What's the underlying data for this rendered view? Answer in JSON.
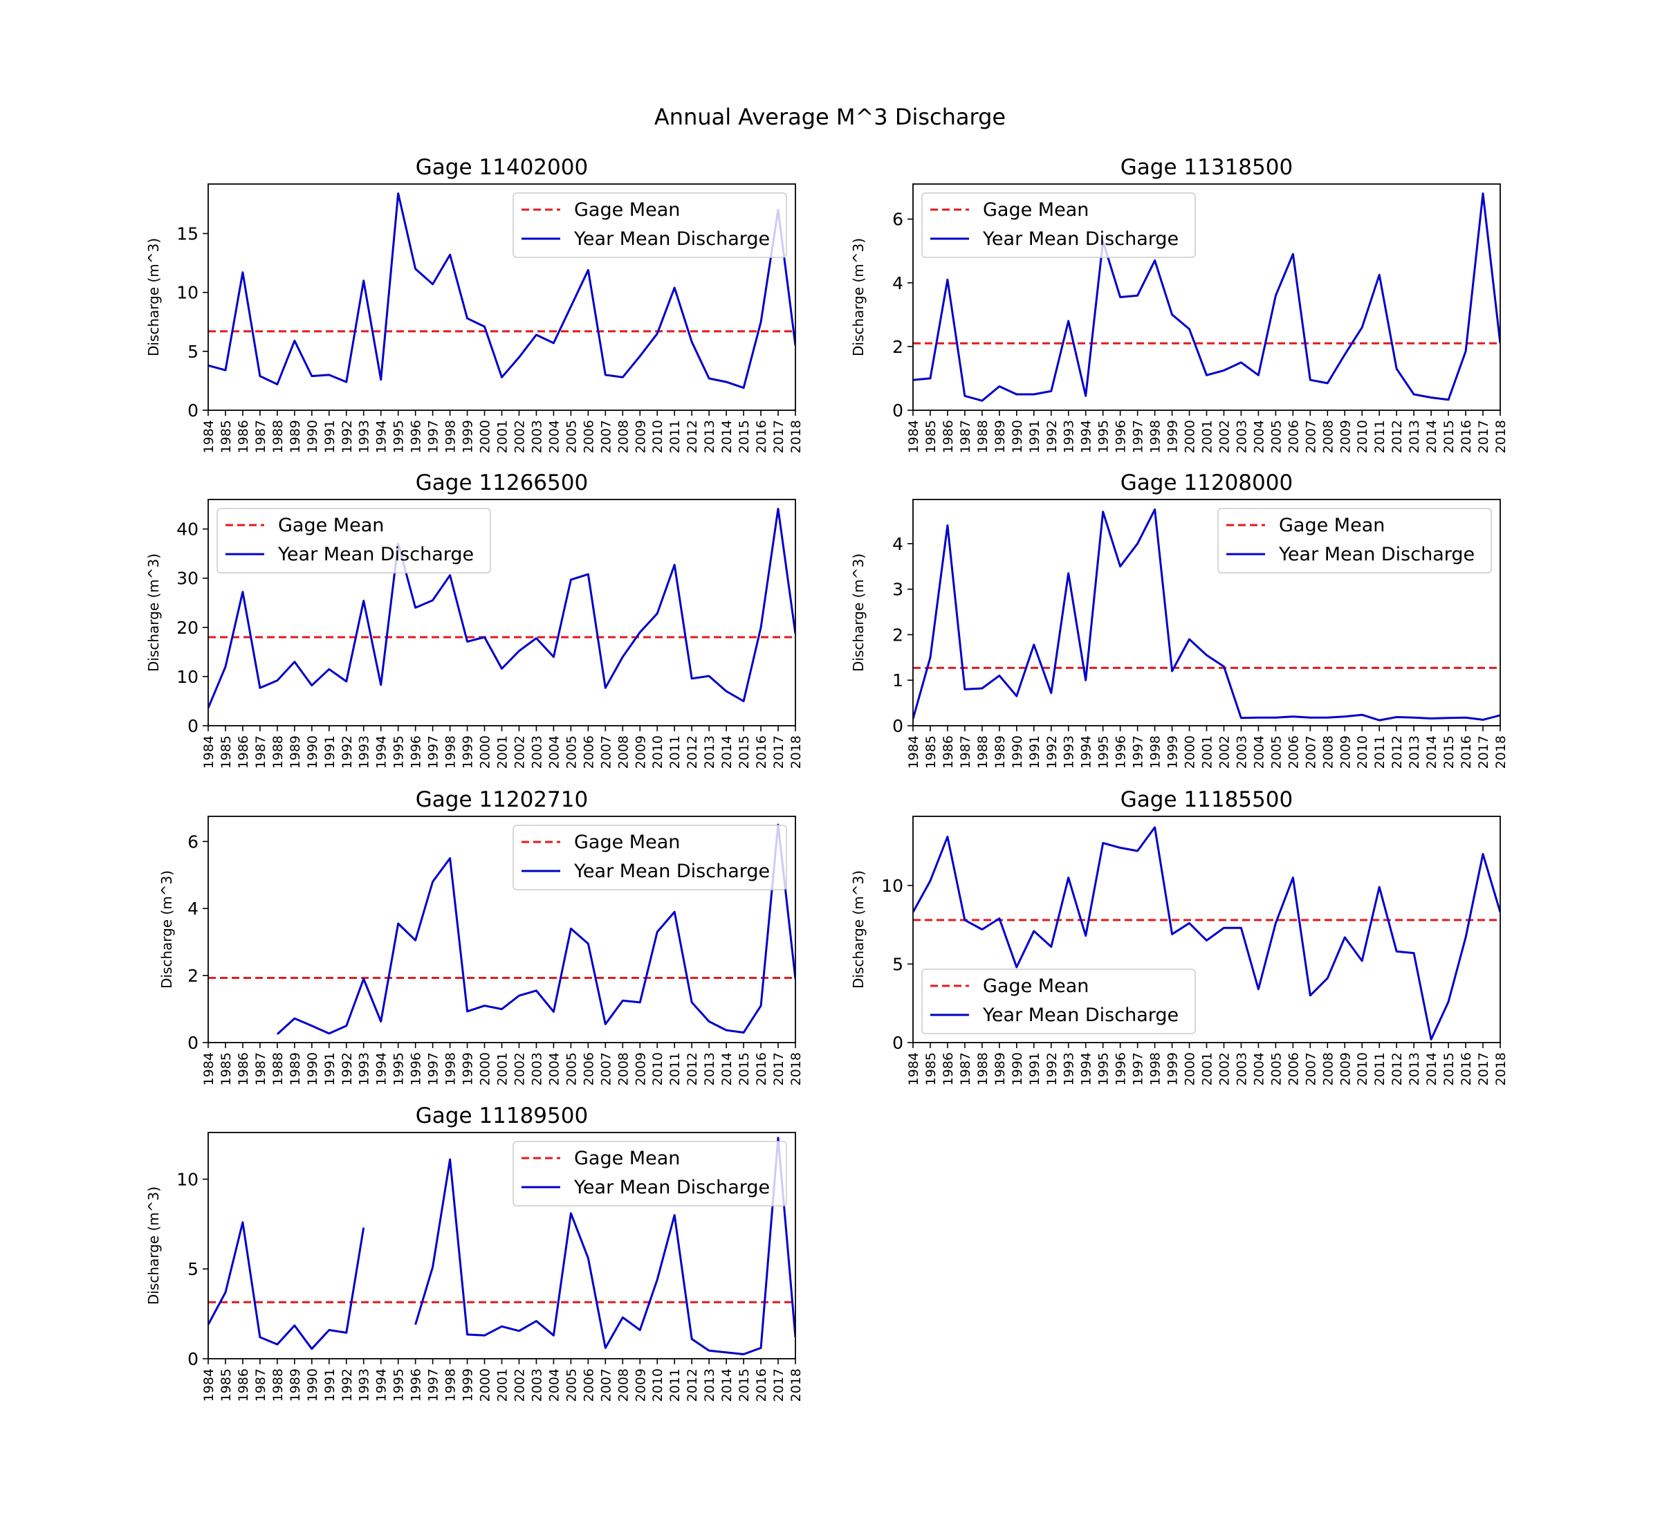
{
  "figure": {
    "title": "Annual Average M^3 Discharge"
  },
  "colors": {
    "mean_line": "#e41a1c",
    "discharge_line": "#0000cc",
    "axes": "#000000"
  },
  "chart_data": [
    {
      "type": "line",
      "title": "Gage 11402000",
      "xlabel": "",
      "ylabel": "Discharge (m^3)",
      "x": [
        1984,
        1985,
        1986,
        1987,
        1988,
        1989,
        1990,
        1991,
        1992,
        1993,
        1994,
        1995,
        1996,
        1997,
        1998,
        1999,
        2000,
        2001,
        2002,
        2003,
        2004,
        2005,
        2006,
        2007,
        2008,
        2009,
        2010,
        2011,
        2012,
        2013,
        2014,
        2015,
        2016,
        2017,
        2018
      ],
      "ylim": [
        0,
        19.2
      ],
      "yticks": [
        0,
        5,
        10,
        15
      ],
      "legend_position": "upper right",
      "series": [
        {
          "name": "Gage Mean",
          "style": "dashed",
          "values": [
            6.7,
            6.7,
            6.7,
            6.7,
            6.7,
            6.7,
            6.7,
            6.7,
            6.7,
            6.7,
            6.7,
            6.7,
            6.7,
            6.7,
            6.7,
            6.7,
            6.7,
            6.7,
            6.7,
            6.7,
            6.7,
            6.7,
            6.7,
            6.7,
            6.7,
            6.7,
            6.7,
            6.7,
            6.7,
            6.7,
            6.7,
            6.7,
            6.7,
            6.7,
            6.7
          ]
        },
        {
          "name": "Year Mean Discharge",
          "style": "solid",
          "values": [
            3.8,
            3.4,
            11.7,
            2.9,
            2.2,
            5.9,
            2.9,
            3.0,
            2.4,
            11.0,
            2.6,
            18.4,
            12.0,
            10.7,
            13.2,
            7.8,
            7.1,
            2.8,
            4.5,
            6.4,
            5.7,
            8.8,
            11.9,
            3.0,
            2.8,
            4.6,
            6.5,
            10.4,
            5.8,
            2.7,
            2.4,
            1.9,
            7.5,
            17.0,
            5.5
          ]
        }
      ]
    },
    {
      "type": "line",
      "title": "Gage 11318500",
      "xlabel": "",
      "ylabel": "Discharge (m^3)",
      "x": [
        1984,
        1985,
        1986,
        1987,
        1988,
        1989,
        1990,
        1991,
        1992,
        1993,
        1994,
        1995,
        1996,
        1997,
        1998,
        1999,
        2000,
        2001,
        2002,
        2003,
        2004,
        2005,
        2006,
        2007,
        2008,
        2009,
        2010,
        2011,
        2012,
        2013,
        2014,
        2015,
        2016,
        2017,
        2018
      ],
      "ylim": [
        0,
        7.1
      ],
      "yticks": [
        0,
        2,
        4,
        6
      ],
      "legend_position": "upper left",
      "series": [
        {
          "name": "Gage Mean",
          "style": "dashed",
          "values": [
            2.1,
            2.1,
            2.1,
            2.1,
            2.1,
            2.1,
            2.1,
            2.1,
            2.1,
            2.1,
            2.1,
            2.1,
            2.1,
            2.1,
            2.1,
            2.1,
            2.1,
            2.1,
            2.1,
            2.1,
            2.1,
            2.1,
            2.1,
            2.1,
            2.1,
            2.1,
            2.1,
            2.1,
            2.1,
            2.1,
            2.1,
            2.1,
            2.1,
            2.1,
            2.1
          ]
        },
        {
          "name": "Year Mean Discharge",
          "style": "solid",
          "values": [
            0.95,
            1.0,
            4.1,
            0.45,
            0.3,
            0.75,
            0.5,
            0.5,
            0.6,
            2.8,
            0.45,
            5.3,
            3.55,
            3.6,
            4.7,
            3.0,
            2.55,
            1.1,
            1.25,
            1.5,
            1.1,
            3.6,
            4.9,
            0.95,
            0.85,
            1.75,
            2.6,
            4.25,
            1.3,
            0.5,
            0.4,
            0.33,
            1.85,
            6.8,
            2.1
          ]
        }
      ]
    },
    {
      "type": "line",
      "title": "Gage 11266500",
      "xlabel": "",
      "ylabel": "Discharge (m^3)",
      "x": [
        1984,
        1985,
        1986,
        1987,
        1988,
        1989,
        1990,
        1991,
        1992,
        1993,
        1994,
        1995,
        1996,
        1997,
        1998,
        1999,
        2000,
        2001,
        2002,
        2003,
        2004,
        2005,
        2006,
        2007,
        2008,
        2009,
        2010,
        2011,
        2012,
        2013,
        2014,
        2015,
        2016,
        2017,
        2018
      ],
      "ylim": [
        0,
        46
      ],
      "yticks": [
        0,
        10,
        20,
        30,
        40
      ],
      "legend_position": "upper left",
      "series": [
        {
          "name": "Gage Mean",
          "style": "dashed",
          "values": [
            18,
            18,
            18,
            18,
            18,
            18,
            18,
            18,
            18,
            18,
            18,
            18,
            18,
            18,
            18,
            18,
            18,
            18,
            18,
            18,
            18,
            18,
            18,
            18,
            18,
            18,
            18,
            18,
            18,
            18,
            18,
            18,
            18,
            18,
            18
          ]
        },
        {
          "name": "Year Mean Discharge",
          "style": "solid",
          "values": [
            3.6,
            12.0,
            27.2,
            7.7,
            9.2,
            13.0,
            8.2,
            11.5,
            9.0,
            25.4,
            8.3,
            37.0,
            24.0,
            25.5,
            30.6,
            17.1,
            18.0,
            11.6,
            15.2,
            17.8,
            14.0,
            29.7,
            30.8,
            7.7,
            14.0,
            19.0,
            22.8,
            32.7,
            9.6,
            10.1,
            7.0,
            5.0,
            20.0,
            44.1,
            18.7
          ]
        }
      ]
    },
    {
      "type": "line",
      "title": "Gage 11208000",
      "xlabel": "",
      "ylabel": "Discharge (m^3)",
      "x": [
        1984,
        1985,
        1986,
        1987,
        1988,
        1989,
        1990,
        1991,
        1992,
        1993,
        1994,
        1995,
        1996,
        1997,
        1998,
        1999,
        2000,
        2001,
        2002,
        2003,
        2004,
        2005,
        2006,
        2007,
        2008,
        2009,
        2010,
        2011,
        2012,
        2013,
        2014,
        2015,
        2016,
        2017,
        2018
      ],
      "ylim": [
        0,
        4.97
      ],
      "yticks": [
        0,
        1,
        2,
        3,
        4
      ],
      "legend_position": "upper right",
      "series": [
        {
          "name": "Gage Mean",
          "style": "dashed",
          "values": [
            1.27,
            1.27,
            1.27,
            1.27,
            1.27,
            1.27,
            1.27,
            1.27,
            1.27,
            1.27,
            1.27,
            1.27,
            1.27,
            1.27,
            1.27,
            1.27,
            1.27,
            1.27,
            1.27,
            1.27,
            1.27,
            1.27,
            1.27,
            1.27,
            1.27,
            1.27,
            1.27,
            1.27,
            1.27,
            1.27,
            1.27,
            1.27,
            1.27,
            1.27,
            1.27
          ]
        },
        {
          "name": "Year Mean Discharge",
          "style": "solid",
          "values": [
            0.15,
            1.5,
            4.4,
            0.8,
            0.82,
            1.1,
            0.65,
            1.78,
            0.72,
            3.35,
            1.0,
            4.7,
            3.5,
            4.0,
            4.75,
            1.2,
            1.9,
            1.55,
            1.3,
            0.17,
            0.18,
            0.18,
            0.2,
            0.18,
            0.18,
            0.2,
            0.24,
            0.12,
            0.19,
            0.18,
            0.16,
            0.17,
            0.18,
            0.13,
            0.23
          ]
        }
      ]
    },
    {
      "type": "line",
      "title": "Gage 11202710",
      "xlabel": "",
      "ylabel": "Discharge (m^3)",
      "x": [
        1984,
        1985,
        1986,
        1987,
        1988,
        1989,
        1990,
        1991,
        1992,
        1993,
        1994,
        1995,
        1996,
        1997,
        1998,
        1999,
        2000,
        2001,
        2002,
        2003,
        2004,
        2005,
        2006,
        2007,
        2008,
        2009,
        2010,
        2011,
        2012,
        2013,
        2014,
        2015,
        2016,
        2017,
        2018
      ],
      "ylim": [
        0,
        6.75
      ],
      "yticks": [
        0,
        2,
        4,
        6
      ],
      "legend_position": "upper right",
      "series": [
        {
          "name": "Gage Mean",
          "style": "dashed",
          "values": [
            1.93,
            1.93,
            1.93,
            1.93,
            1.93,
            1.93,
            1.93,
            1.93,
            1.93,
            1.93,
            1.93,
            1.93,
            1.93,
            1.93,
            1.93,
            1.93,
            1.93,
            1.93,
            1.93,
            1.93,
            1.93,
            1.93,
            1.93,
            1.93,
            1.93,
            1.93,
            1.93,
            1.93,
            1.93,
            1.93,
            1.93,
            1.93,
            1.93,
            1.93,
            1.93
          ]
        },
        {
          "name": "Year Mean Discharge",
          "style": "solid",
          "values": [
            null,
            null,
            null,
            null,
            0.25,
            0.72,
            0.5,
            0.27,
            0.5,
            1.9,
            0.63,
            3.55,
            3.05,
            4.8,
            5.5,
            0.93,
            1.1,
            1.0,
            1.4,
            1.55,
            0.92,
            3.4,
            2.95,
            0.55,
            1.25,
            1.2,
            3.3,
            3.9,
            1.2,
            0.63,
            0.37,
            0.3,
            1.1,
            6.5,
            1.9
          ]
        }
      ]
    },
    {
      "type": "line",
      "title": "Gage 11185500",
      "xlabel": "",
      "ylabel": "Discharge (m^3)",
      "x": [
        1984,
        1985,
        1986,
        1987,
        1988,
        1989,
        1990,
        1991,
        1992,
        1993,
        1994,
        1995,
        1996,
        1997,
        1998,
        1999,
        2000,
        2001,
        2002,
        2003,
        2004,
        2005,
        2006,
        2007,
        2008,
        2009,
        2010,
        2011,
        2012,
        2013,
        2014,
        2015,
        2016,
        2017,
        2018
      ],
      "ylim": [
        0,
        14.4
      ],
      "yticks": [
        0,
        5,
        10
      ],
      "legend_position": "lower left",
      "series": [
        {
          "name": "Gage Mean",
          "style": "dashed",
          "values": [
            7.8,
            7.8,
            7.8,
            7.8,
            7.8,
            7.8,
            7.8,
            7.8,
            7.8,
            7.8,
            7.8,
            7.8,
            7.8,
            7.8,
            7.8,
            7.8,
            7.8,
            7.8,
            7.8,
            7.8,
            7.8,
            7.8,
            7.8,
            7.8,
            7.8,
            7.8,
            7.8,
            7.8,
            7.8,
            7.8,
            7.8,
            7.8,
            7.8,
            7.8,
            7.8
          ]
        },
        {
          "name": "Year Mean Discharge",
          "style": "solid",
          "values": [
            8.3,
            10.3,
            13.1,
            7.8,
            7.2,
            7.9,
            4.8,
            7.1,
            6.1,
            10.5,
            6.8,
            12.7,
            12.4,
            12.2,
            13.7,
            6.9,
            7.6,
            6.5,
            7.3,
            7.3,
            3.4,
            7.6,
            10.5,
            3.0,
            4.1,
            6.7,
            5.2,
            9.9,
            5.8,
            5.7,
            0.2,
            2.6,
            6.7,
            12.0,
            8.3
          ]
        }
      ]
    },
    {
      "type": "line",
      "title": "Gage 11189500",
      "xlabel": "",
      "ylabel": "Discharge (m^3)",
      "x": [
        1984,
        1985,
        1986,
        1987,
        1988,
        1989,
        1990,
        1991,
        1992,
        1993,
        1994,
        1995,
        1996,
        1997,
        1998,
        1999,
        2000,
        2001,
        2002,
        2003,
        2004,
        2005,
        2006,
        2007,
        2008,
        2009,
        2010,
        2011,
        2012,
        2013,
        2014,
        2015,
        2016,
        2017,
        2018
      ],
      "ylim": [
        0,
        12.6
      ],
      "yticks": [
        0,
        5,
        10
      ],
      "legend_position": "upper right",
      "series": [
        {
          "name": "Gage Mean",
          "style": "dashed",
          "values": [
            3.15,
            3.15,
            3.15,
            3.15,
            3.15,
            3.15,
            3.15,
            3.15,
            3.15,
            3.15,
            3.15,
            3.15,
            3.15,
            3.15,
            3.15,
            3.15,
            3.15,
            3.15,
            3.15,
            3.15,
            3.15,
            3.15,
            3.15,
            3.15,
            3.15,
            3.15,
            3.15,
            3.15,
            3.15,
            3.15,
            3.15,
            3.15,
            3.15,
            3.15,
            3.15
          ]
        },
        {
          "name": "Year Mean Discharge",
          "style": "solid",
          "values": [
            1.9,
            3.7,
            7.6,
            1.2,
            0.8,
            1.85,
            0.55,
            1.6,
            1.45,
            7.3,
            null,
            null,
            1.9,
            5.1,
            11.1,
            1.35,
            1.3,
            1.8,
            1.55,
            2.1,
            1.3,
            8.1,
            5.6,
            0.6,
            2.3,
            1.6,
            4.4,
            8.0,
            1.1,
            0.45,
            0.35,
            0.25,
            0.6,
            12.3,
            1.2
          ]
        }
      ]
    }
  ]
}
